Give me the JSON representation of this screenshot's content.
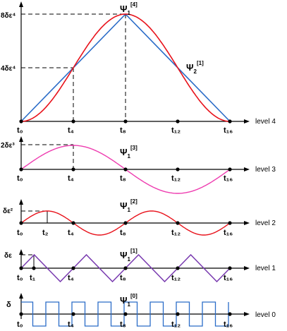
{
  "panels": [
    {
      "level": "level 4",
      "psi": "Ψ",
      "psi_sub": "1",
      "psi_sup": "[4]",
      "psi2": "Ψ",
      "psi2_sub": "2",
      "psi2_sup": "[1]",
      "ytick_a": "8δε⁴",
      "ytick_b": "4δε⁴",
      "ticks": [
        "t₀",
        "t₄",
        "t₈",
        "t₁₂",
        "t₁₆"
      ],
      "colors": {
        "curve": "#e8121b",
        "line": "#2a6cc8"
      }
    },
    {
      "level": "level 3",
      "psi": "Ψ",
      "psi_sub": "1",
      "psi_sup": "[3]",
      "ytick": "2δε³",
      "ticks": [
        "t₀",
        "t₄",
        "t₈",
        "t₁₂",
        "t₁₆"
      ],
      "colors": {
        "curve": "#ee3db0"
      }
    },
    {
      "level": "level 2",
      "psi": "Ψ",
      "psi_sub": "1",
      "psi_sup": "[2]",
      "ytick": "δε²",
      "ticks": [
        "t₀",
        "t₂",
        "t₄",
        "t₈",
        "t₁₂",
        "t₁₆"
      ],
      "colors": {
        "curve": "#e8121b"
      }
    },
    {
      "level": "level 1",
      "psi": "Ψ",
      "psi_sub": "1",
      "psi_sup": "[1]",
      "ytick": "δε",
      "ticks": [
        "t₀",
        "t₁",
        "t₄",
        "t₈",
        "t₁₂",
        "t₁₆"
      ],
      "colors": {
        "curve": "#7a3cb0"
      }
    },
    {
      "level": "level 0",
      "psi": "Ψ",
      "psi_sub": "1",
      "psi_sup": "[0]",
      "ytick": "δ",
      "ticks": [
        "t₀",
        "t₄",
        "t₈",
        "t₁₂",
        "t₁₆"
      ],
      "colors": {
        "curve": "#2a6cc8"
      }
    }
  ]
}
